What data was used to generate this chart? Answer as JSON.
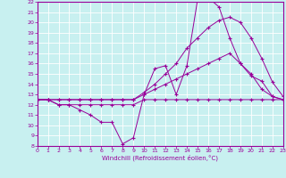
{
  "xlabel": "Windchill (Refroidissement éolien,°C)",
  "xlim": [
    0,
    23
  ],
  "ylim": [
    8,
    22
  ],
  "yticks": [
    8,
    9,
    10,
    11,
    12,
    13,
    14,
    15,
    16,
    17,
    18,
    19,
    20,
    21,
    22
  ],
  "xticks": [
    0,
    1,
    2,
    3,
    4,
    5,
    6,
    7,
    8,
    9,
    10,
    11,
    12,
    13,
    14,
    15,
    16,
    17,
    18,
    19,
    20,
    21,
    22,
    23
  ],
  "bg_color": "#c8f0f0",
  "line_color": "#990099",
  "grid_color": "#ffffff",
  "series": [
    [
      12.5,
      12.5,
      12.0,
      12.0,
      11.5,
      11.0,
      10.3,
      10.3,
      8.2,
      8.8,
      13.0,
      15.5,
      15.8,
      13.0,
      15.8,
      22.2,
      22.4,
      21.5,
      18.5,
      16.0,
      14.8,
      14.3,
      12.8,
      12.5
    ],
    [
      12.5,
      12.5,
      12.0,
      12.0,
      12.0,
      12.0,
      12.0,
      12.0,
      12.0,
      12.0,
      12.5,
      12.5,
      12.5,
      12.5,
      12.5,
      12.5,
      12.5,
      12.5,
      12.5,
      12.5,
      12.5,
      12.5,
      12.5,
      12.5
    ],
    [
      12.5,
      12.5,
      12.5,
      12.5,
      12.5,
      12.5,
      12.5,
      12.5,
      12.5,
      12.5,
      13.0,
      13.5,
      14.0,
      14.5,
      15.0,
      15.5,
      16.0,
      16.5,
      17.0,
      16.0,
      15.0,
      13.5,
      12.8,
      12.5
    ],
    [
      12.5,
      12.5,
      12.5,
      12.5,
      12.5,
      12.5,
      12.5,
      12.5,
      12.5,
      12.5,
      13.2,
      14.0,
      15.0,
      16.0,
      17.5,
      18.5,
      19.5,
      20.2,
      20.5,
      20.0,
      18.5,
      16.5,
      14.2,
      12.8
    ]
  ]
}
